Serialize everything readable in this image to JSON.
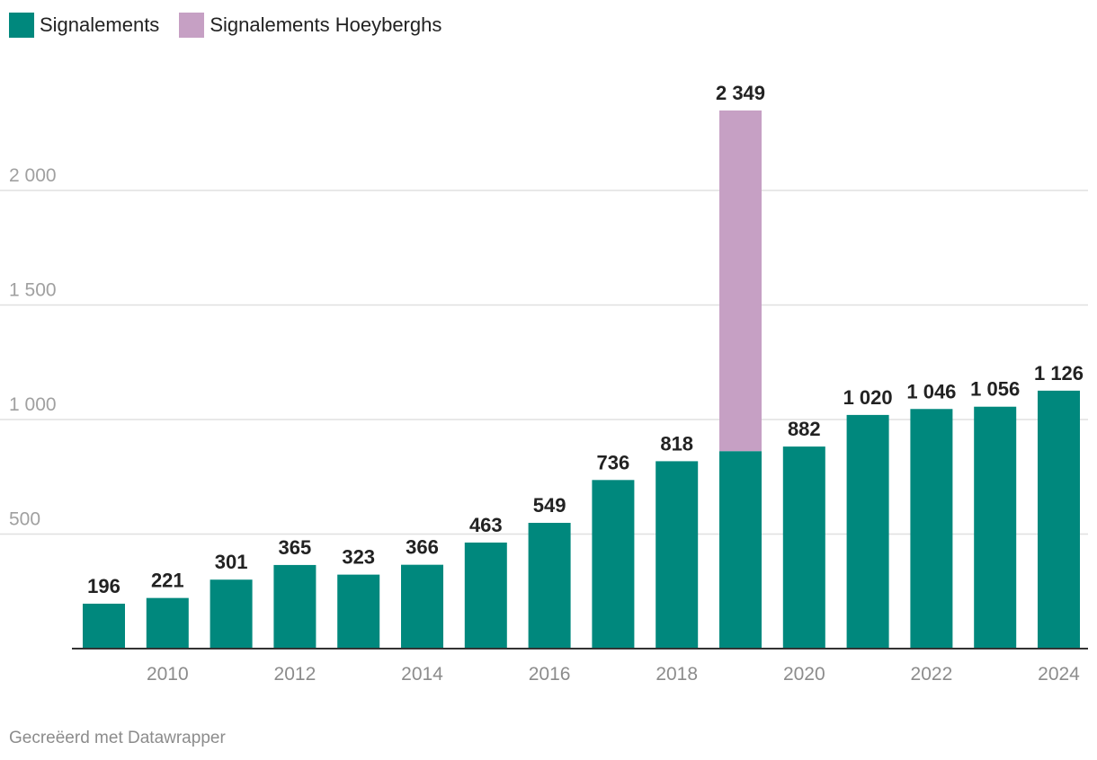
{
  "legend": {
    "items": [
      {
        "label": "Signalements",
        "color": "#00887d"
      },
      {
        "label": "Signalements Hoeyberghs",
        "color": "#c6a0c4"
      }
    ]
  },
  "footer": {
    "credit": "Gecreëerd met Datawrapper"
  },
  "chart_data": {
    "type": "bar",
    "stacked": true,
    "title": "",
    "xlabel": "",
    "ylabel": "",
    "ylim": [
      0,
      2500
    ],
    "y_ticks": [
      500,
      1000,
      1500,
      2000
    ],
    "y_tick_labels": [
      "500",
      "1 000",
      "1 500",
      "2 000"
    ],
    "grid": true,
    "legend_position": "top-left",
    "categories": [
      "2009",
      "2010",
      "2011",
      "2012",
      "2013",
      "2014",
      "2015",
      "2016",
      "2017",
      "2018",
      "2019",
      "2020",
      "2021",
      "2022",
      "2023",
      "2024"
    ],
    "x_tick_labels": [
      "",
      "2010",
      "",
      "2012",
      "",
      "2014",
      "",
      "2016",
      "",
      "2018",
      "",
      "2020",
      "",
      "2022",
      "",
      "2024"
    ],
    "series": [
      {
        "name": "Signalements",
        "color": "#00887d",
        "values": [
          196,
          221,
          301,
          365,
          323,
          366,
          463,
          549,
          736,
          818,
          862,
          882,
          1020,
          1046,
          1056,
          1126
        ]
      },
      {
        "name": "Signalements Hoeyberghs",
        "color": "#c6a0c4",
        "values": [
          0,
          0,
          0,
          0,
          0,
          0,
          0,
          0,
          0,
          0,
          1487,
          0,
          0,
          0,
          0,
          0
        ]
      }
    ],
    "total_labels": [
      "196",
      "221",
      "301",
      "365",
      "323",
      "366",
      "463",
      "549",
      "736",
      "818",
      "2 349",
      "882",
      "1 020",
      "1 046",
      "1 056",
      "1 126"
    ]
  }
}
